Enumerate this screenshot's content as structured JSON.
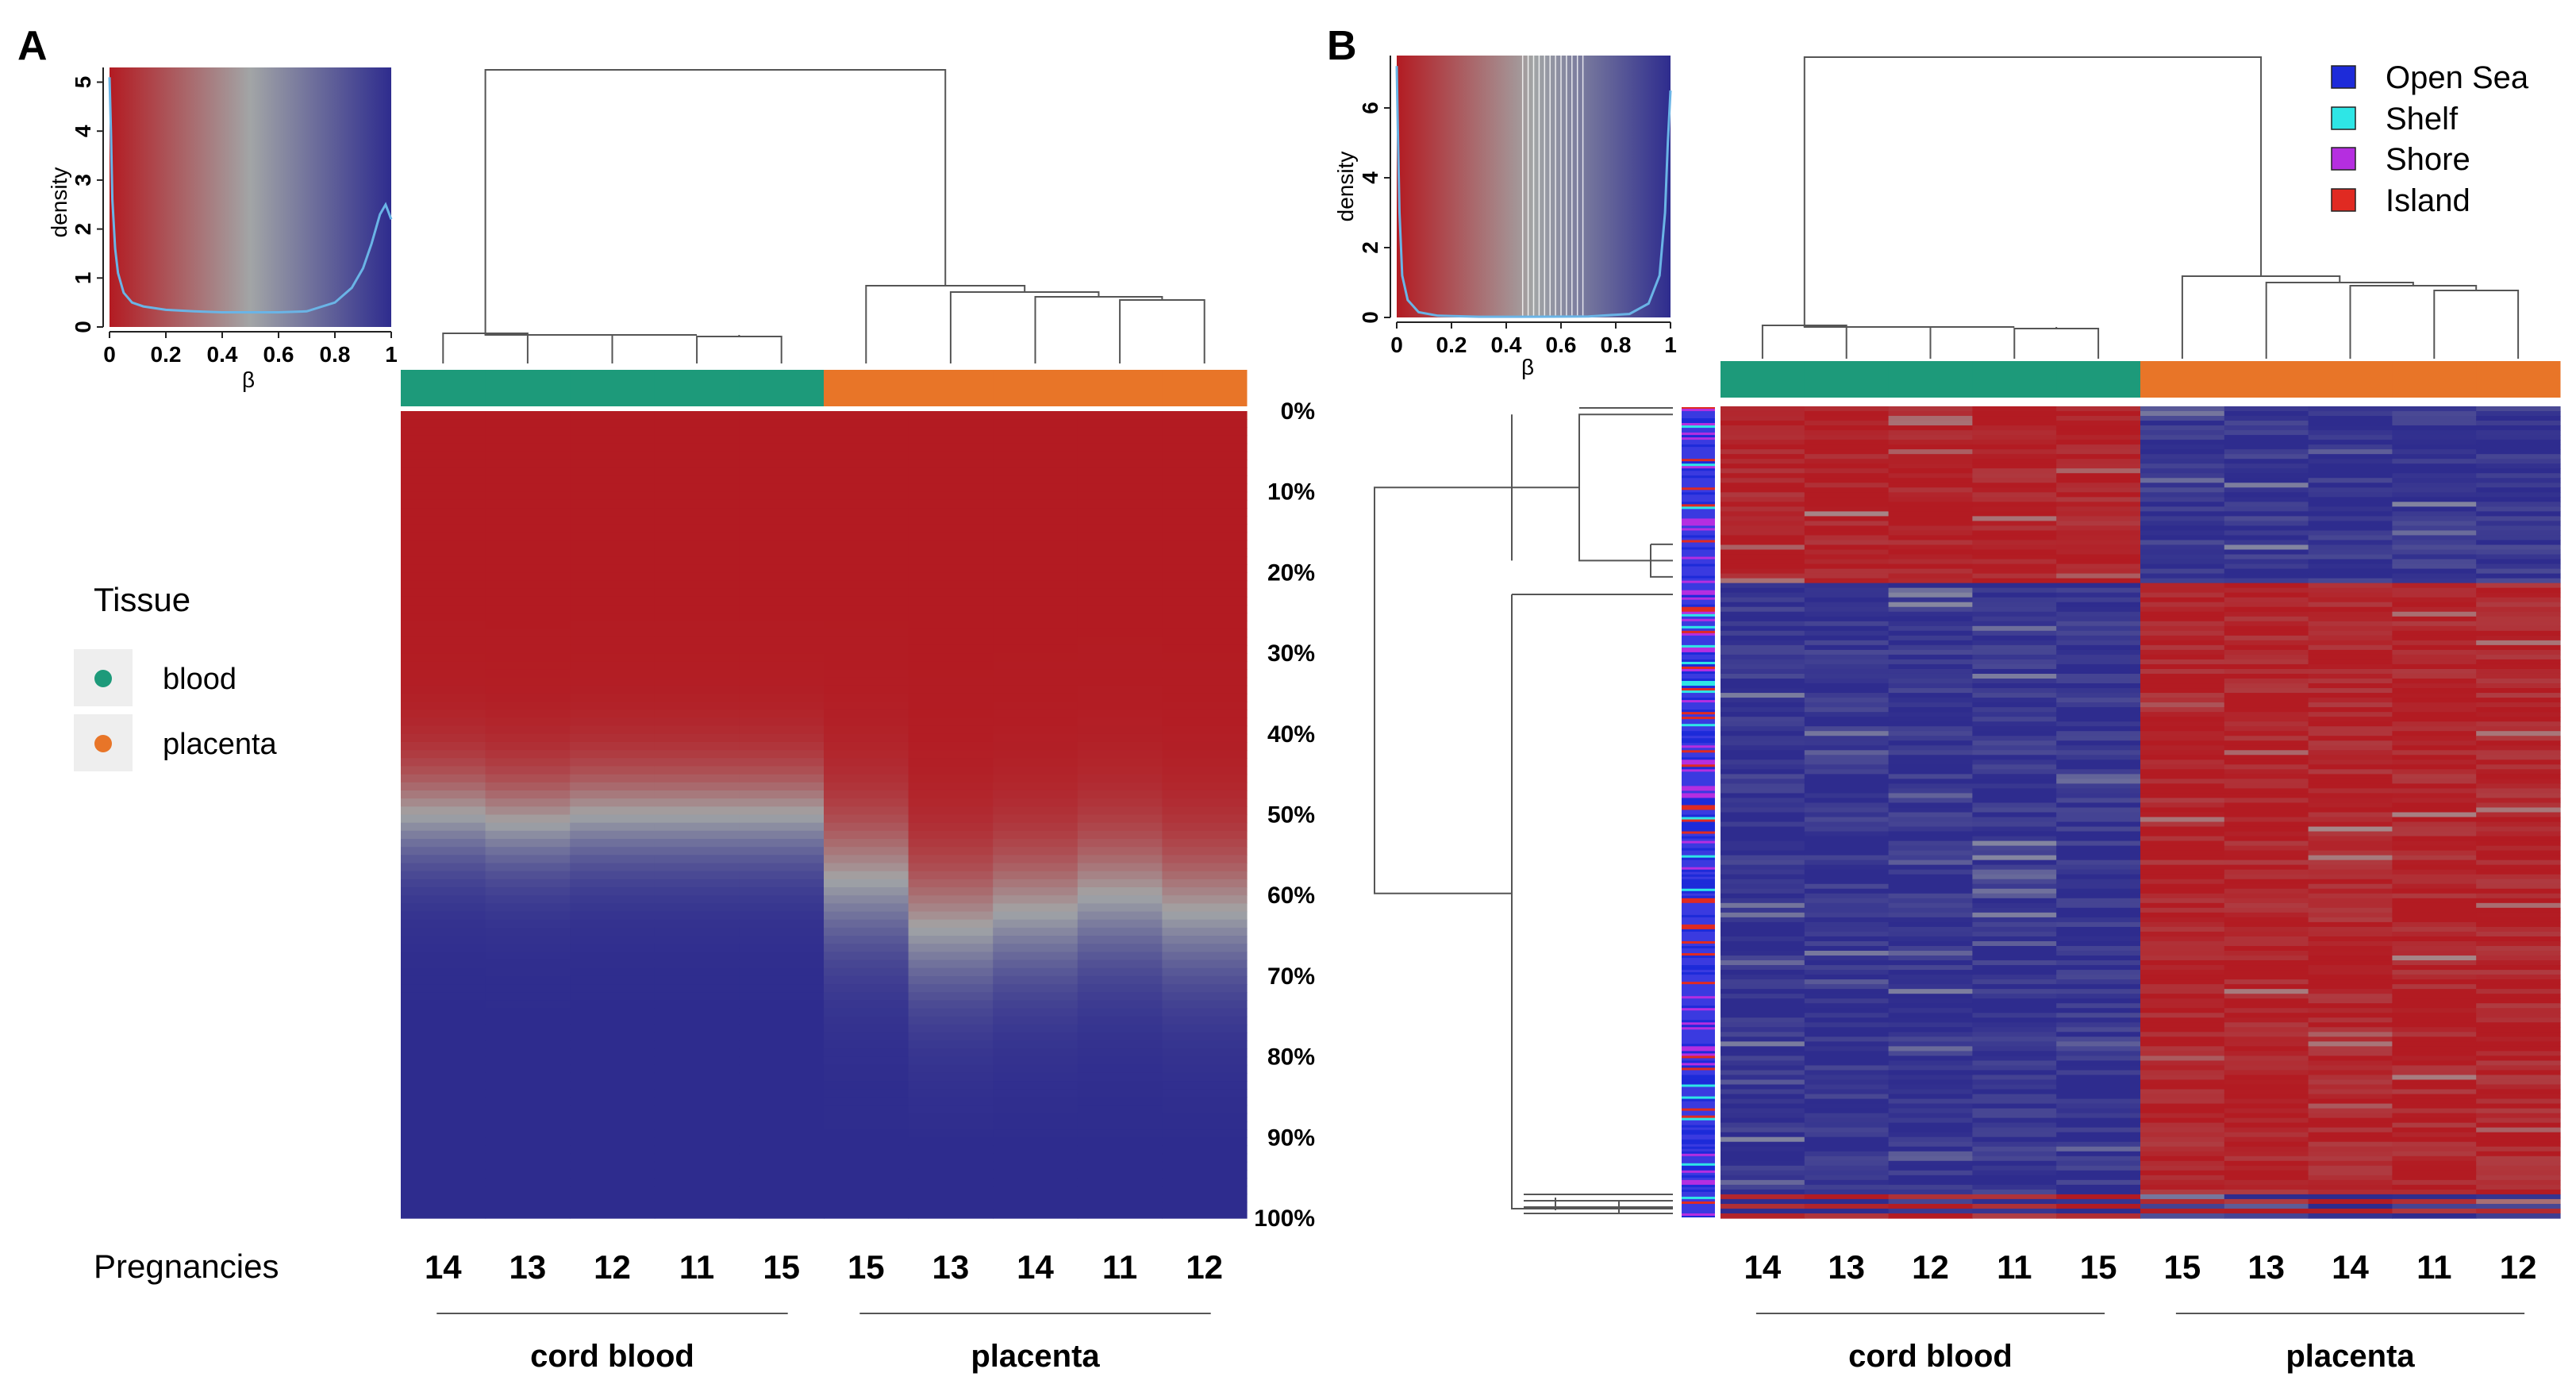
{
  "figure": {
    "panel_a_label": "A",
    "panel_b_label": "B"
  },
  "colors": {
    "low": "#b31b22",
    "mid": "#a2a5a6",
    "high": "#2e2c8e",
    "blood": "#1d9a7a",
    "placenta": "#e87528",
    "density_line": "#6ab4e6",
    "dendro": "#555555",
    "open_sea": "#1d2bd9",
    "shelf": "#2ee6e6",
    "shore": "#b52ee0",
    "island": "#e02a22"
  },
  "tissue_legend": {
    "title": "Tissue",
    "items": [
      {
        "label": "blood",
        "color": "#1d9a7a"
      },
      {
        "label": "placenta",
        "color": "#e87528"
      }
    ]
  },
  "region_legend": {
    "items": [
      {
        "label": "Open Sea",
        "color": "#1d2bd9"
      },
      {
        "label": "Shelf",
        "color": "#2ee6e6"
      },
      {
        "label": "Shore",
        "color": "#b52ee0"
      },
      {
        "label": "Island",
        "color": "#e02a22"
      }
    ]
  },
  "bottom": {
    "row_title": "Pregnancies",
    "groups": [
      "cord blood",
      "placenta"
    ]
  },
  "chart_data": [
    {
      "panel": "A",
      "type": "heatmap",
      "title": "",
      "columns": [
        "14",
        "13",
        "12",
        "11",
        "15",
        "15",
        "13",
        "14",
        "11",
        "12"
      ],
      "column_tissue": [
        "blood",
        "blood",
        "blood",
        "blood",
        "blood",
        "placenta",
        "placenta",
        "placenta",
        "placenta",
        "placenta"
      ],
      "column_groups": [
        {
          "label": "cord blood",
          "count": 5
        },
        {
          "label": "placenta",
          "count": 5
        }
      ],
      "row_axis": {
        "labels": [
          "0%",
          "10%",
          "20%",
          "30%",
          "40%",
          "50%",
          "60%",
          "70%",
          "80%",
          "90%",
          "100%"
        ],
        "values": [
          0,
          10,
          20,
          30,
          40,
          50,
          60,
          70,
          80,
          90,
          100
        ]
      },
      "value_label": "β",
      "value_range": [
        0,
        1
      ],
      "midpoint_percentile": [
        50,
        51,
        50,
        50,
        50,
        58,
        64,
        62,
        60,
        62
      ],
      "color_scale": {
        "low": "#b31b22",
        "mid": "#a2a5a6",
        "high": "#2e2c8e"
      },
      "density_key": {
        "xlabel": "β",
        "ylabel": "density",
        "xticks": [
          "0",
          "0.2",
          "0.4",
          "0.6",
          "0.8",
          "1"
        ],
        "yticks": [
          "0",
          "1",
          "2",
          "3",
          "4",
          "5"
        ],
        "xlim": [
          0,
          1
        ],
        "ylim": [
          0,
          5.3
        ],
        "curve": {
          "x": [
            0,
            0.005,
            0.01,
            0.02,
            0.03,
            0.05,
            0.08,
            0.12,
            0.2,
            0.3,
            0.4,
            0.5,
            0.6,
            0.7,
            0.8,
            0.86,
            0.9,
            0.93,
            0.96,
            0.98,
            1.0
          ],
          "y": [
            5.1,
            4.0,
            2.6,
            1.6,
            1.1,
            0.7,
            0.5,
            0.42,
            0.35,
            0.32,
            0.3,
            0.3,
            0.3,
            0.32,
            0.5,
            0.8,
            1.2,
            1.7,
            2.3,
            2.5,
            2.2
          ]
        }
      }
    },
    {
      "panel": "B",
      "type": "heatmap",
      "title": "",
      "columns": [
        "14",
        "13",
        "12",
        "11",
        "15",
        "15",
        "13",
        "14",
        "11",
        "12"
      ],
      "column_tissue": [
        "blood",
        "blood",
        "blood",
        "blood",
        "blood",
        "placenta",
        "placenta",
        "placenta",
        "placenta",
        "placenta"
      ],
      "column_groups": [
        {
          "label": "cord blood",
          "count": 5
        },
        {
          "label": "placenta",
          "count": 5
        }
      ],
      "value_label": "β",
      "value_range": [
        0,
        1
      ],
      "row_cluster_split_fraction": 0.22,
      "row_annotation_categories": [
        "Open Sea",
        "Shelf",
        "Shore",
        "Island"
      ],
      "color_scale": {
        "low": "#b31b22",
        "mid": "#a2a5a6",
        "high": "#2e2c8e"
      },
      "density_key": {
        "xlabel": "β",
        "ylabel": "density",
        "xticks": [
          "0",
          "0.2",
          "0.4",
          "0.6",
          "0.8",
          "1"
        ],
        "yticks": [
          "0",
          "2",
          "4",
          "6"
        ],
        "xlim": [
          0,
          1
        ],
        "ylim": [
          0,
          7.5
        ],
        "curve": {
          "x": [
            0,
            0.005,
            0.01,
            0.02,
            0.04,
            0.08,
            0.15,
            0.3,
            0.5,
            0.7,
            0.85,
            0.92,
            0.96,
            0.98,
            0.99,
            1.0
          ],
          "y": [
            7.2,
            5.0,
            3.0,
            1.2,
            0.5,
            0.15,
            0.05,
            0.02,
            0.02,
            0.03,
            0.1,
            0.4,
            1.2,
            3.0,
            5.0,
            6.5
          ]
        }
      }
    }
  ]
}
